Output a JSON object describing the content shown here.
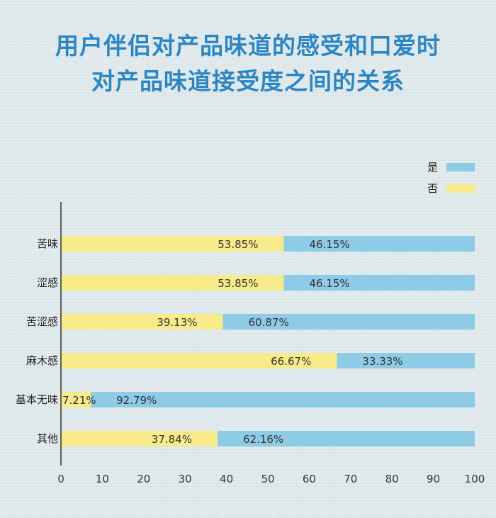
{
  "title_lines": [
    "用户伴侣对产品味道的感受和口爱时",
    "对产品味道接受度之间的关系"
  ],
  "chart_data": {
    "type": "bar",
    "orientation": "horizontal",
    "stacked": true,
    "categories": [
      "苦味",
      "涩感",
      "苦涩感",
      "麻木感",
      "基本无味",
      "其他"
    ],
    "series": [
      {
        "name": "否",
        "color": "#f8ec8a",
        "values": [
          53.85,
          53.85,
          39.13,
          66.67,
          7.21,
          37.84
        ]
      },
      {
        "name": "是",
        "color": "#8ecbe6",
        "values": [
          46.15,
          46.15,
          60.87,
          33.33,
          92.79,
          62.16
        ]
      }
    ],
    "value_labels": {
      "否": [
        "53.85%",
        "53.85%",
        "39.13%",
        "66.67%",
        "7.21%",
        "37.84%"
      ],
      "是": [
        "46.15%",
        "46.15%",
        "60.87%",
        "33.33%",
        "92.79%",
        "62.16%"
      ]
    },
    "xlim": [
      0,
      100
    ],
    "xticks": [
      "0",
      "10",
      "20",
      "30",
      "40",
      "50",
      "60",
      "70",
      "80",
      "90",
      "100"
    ],
    "legend_order": [
      "是",
      "否"
    ],
    "legend_position": "top-right",
    "grid": false
  }
}
